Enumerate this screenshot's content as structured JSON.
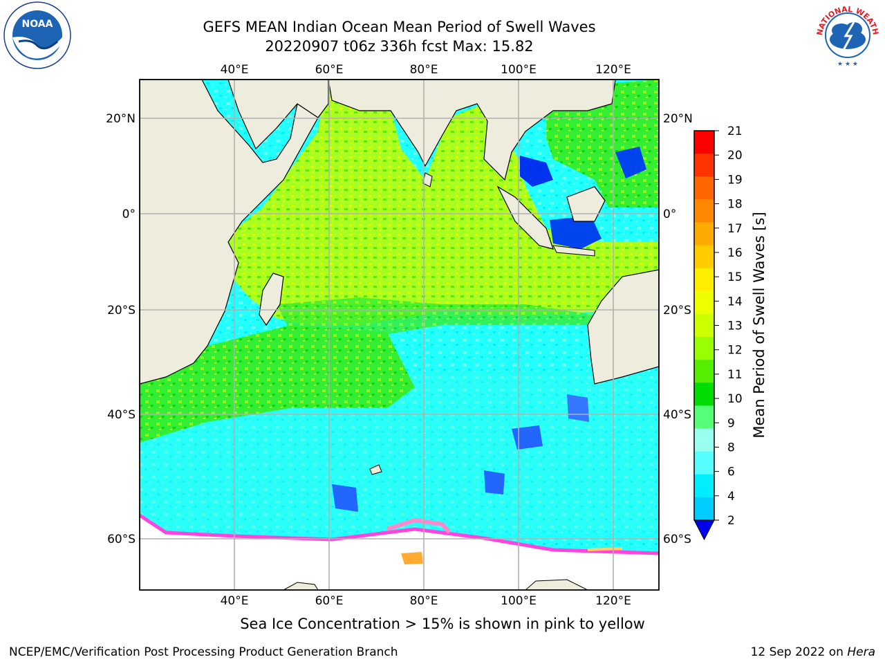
{
  "title_line1": "GEFS MEAN Indian Ocean Mean Period of Swell Waves",
  "title_line2": "20220907 t06z 336h fcst   Max: 15.82",
  "top_lon_labels": [
    "40°E",
    "60°E",
    "80°E",
    "100°E",
    "120°E"
  ],
  "bottom_lon_labels": [
    "40°E",
    "60°E",
    "80°E",
    "100°E",
    "120°E"
  ],
  "left_lat_labels": [
    "20°N",
    "0°",
    "20°S",
    "40°S",
    "60°S"
  ],
  "right_lat_labels": [
    "20°N",
    "0°",
    "20°S",
    "40°S",
    "60°S"
  ],
  "colorbar": {
    "label": "Mean Period of Swell Waves [s]",
    "ticks": [
      "21",
      "20",
      "19",
      "18",
      "17",
      "16",
      "15",
      "14",
      "13",
      "12",
      "11",
      "10",
      "9",
      "8",
      "6",
      "4",
      "2"
    ],
    "colors": [
      "#ff0000",
      "#ff3300",
      "#ff6600",
      "#ff8800",
      "#ffaa00",
      "#ffcc00",
      "#ffee00",
      "#eeff00",
      "#ccff00",
      "#99ff00",
      "#55ee00",
      "#00dd00",
      "#55ff77",
      "#99ffee",
      "#55ffff",
      "#00eeff",
      "#00ccff",
      "#0077ff"
    ],
    "under_color": "#0000ee"
  },
  "sea_ice_note": "Sea Ice Concentration > 15% is shown in pink to yellow",
  "footer_left": "NCEP/EMC/Verification Post Processing Product Generation Branch",
  "footer_date": "12 Sep 2022 on ",
  "footer_machine": "Hera",
  "logos": {
    "noaa": {
      "text": "NOAA"
    },
    "nws": {
      "text": "NATIONAL WEATHER SERVICE"
    }
  },
  "colors": {
    "land": "#eeecdc",
    "grid": "#b0b0b0"
  }
}
